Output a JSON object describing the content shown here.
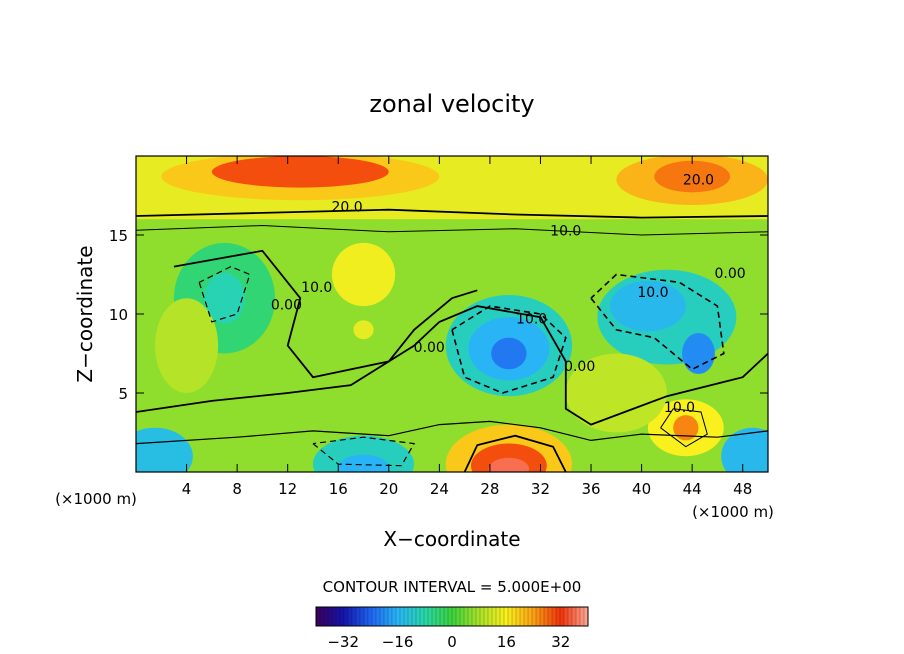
{
  "chart_data": {
    "type": "heatmap",
    "title": "zonal velocity",
    "xlabel": "X−coordinate",
    "ylabel": "Z−coordinate",
    "x_unit_left": "(×1000 m)",
    "x_unit_right": "(×1000 m)",
    "xlim": [
      0,
      50
    ],
    "ylim": [
      0,
      20
    ],
    "x_ticks": [
      4,
      8,
      12,
      16,
      20,
      24,
      28,
      32,
      36,
      40,
      44,
      48
    ],
    "y_ticks": [
      5,
      10,
      15
    ],
    "contour_interval_text": "CONTOUR INTERVAL = 5.000E+00",
    "contour_interval": 5.0,
    "colorbar": {
      "range": [
        -40,
        40
      ],
      "ticks": [
        -32,
        -16,
        0,
        16,
        32
      ],
      "tick_labels": [
        "−32",
        "−16",
        "0",
        "16",
        "32"
      ]
    },
    "contour_labels": [
      {
        "text": "20.0",
        "x": 16.7,
        "y": 16.8
      },
      {
        "text": "20.0",
        "x": 44.5,
        "y": 18.5
      },
      {
        "text": "10.0",
        "x": 34.0,
        "y": 15.3
      },
      {
        "text": "10.0",
        "x": 14.3,
        "y": 11.7
      },
      {
        "text": "10.0",
        "x": 40.9,
        "y": 11.4
      },
      {
        "text": "10.0",
        "x": 31.3,
        "y": 9.7
      },
      {
        "text": "10.0",
        "x": 43.0,
        "y": 4.1
      },
      {
        "text": "0.00",
        "x": 47.0,
        "y": 12.6
      },
      {
        "text": "0.00",
        "x": 11.9,
        "y": 10.6
      },
      {
        "text": "0.00",
        "x": 23.2,
        "y": 7.9
      },
      {
        "text": "0.00",
        "x": 35.1,
        "y": 6.7
      }
    ],
    "features": [
      {
        "x": 13,
        "y": 18.5,
        "value": 30
      },
      {
        "x": 44,
        "y": 18.5,
        "value": 25
      },
      {
        "x": 18,
        "y": 12.5,
        "value": 14
      },
      {
        "x": 18,
        "y": 9,
        "value": 14
      },
      {
        "x": 7,
        "y": 11,
        "value": -8
      },
      {
        "x": 29.5,
        "y": 7.5,
        "value": -20
      },
      {
        "x": 40,
        "y": 10.5,
        "value": -15
      },
      {
        "x": 44.5,
        "y": 7.5,
        "value": -18
      },
      {
        "x": 29.5,
        "y": 0.5,
        "value": 35
      },
      {
        "x": 43.5,
        "y": 2.8,
        "value": 25
      },
      {
        "x": 18,
        "y": 0.5,
        "value": -15
      },
      {
        "x": 2,
        "y": 1.2,
        "value": -15
      },
      {
        "x": 48.5,
        "y": 1.2,
        "value": -15
      }
    ]
  }
}
